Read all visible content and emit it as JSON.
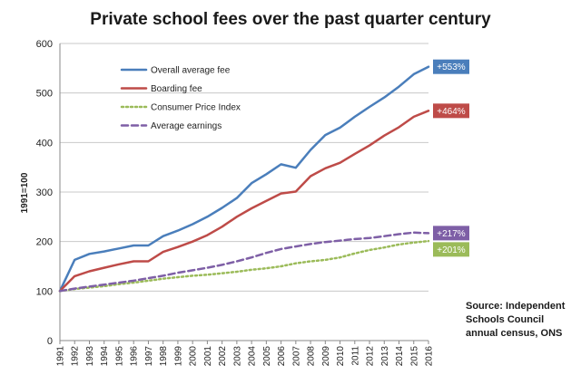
{
  "chart_data": {
    "type": "line",
    "title": "Private school fees over the past quarter century",
    "xlabel": "",
    "ylabel": "1991=100",
    "ylim": [
      0,
      600
    ],
    "yticks": [
      0,
      100,
      200,
      300,
      400,
      500,
      600
    ],
    "grid": true,
    "legend_position": "top-left",
    "categories": [
      "1991",
      "1992",
      "1993",
      "1994",
      "1995",
      "1996",
      "1997",
      "1998",
      "1999",
      "2000",
      "2001",
      "2002",
      "2003",
      "2004",
      "2005",
      "2006",
      "2007",
      "2008",
      "2009",
      "2010",
      "2011",
      "2012",
      "2013",
      "2014",
      "2015",
      "2016"
    ],
    "series": [
      {
        "name": "Overall average fee",
        "color": "#4a7ebb",
        "dash": "solid",
        "end_label": "+553%",
        "end_label_bg": "#4a7ebb",
        "values": [
          100,
          163,
          175,
          180,
          186,
          192,
          192,
          211,
          222,
          235,
          250,
          268,
          288,
          318,
          336,
          356,
          349,
          385,
          415,
          430,
          452,
          472,
          491,
          513,
          538,
          553
        ]
      },
      {
        "name": "Boarding fee",
        "color": "#be4b48",
        "dash": "solid",
        "end_label": "+464%",
        "end_label_bg": "#be4b48",
        "values": [
          100,
          130,
          140,
          147,
          154,
          160,
          160,
          179,
          189,
          200,
          213,
          230,
          250,
          267,
          282,
          297,
          301,
          332,
          348,
          359,
          377,
          394,
          414,
          431,
          452,
          464
        ]
      },
      {
        "name": "Consumer Price Index",
        "color": "#9bbb59",
        "dash": "dotted",
        "end_label": "+201%",
        "end_label_bg": "#9bbb59",
        "values": [
          100,
          104,
          107,
          110,
          114,
          117,
          121,
          125,
          128,
          131,
          133,
          136,
          139,
          143,
          146,
          150,
          156,
          160,
          163,
          168,
          176,
          183,
          188,
          194,
          198,
          201
        ]
      },
      {
        "name": "Average earnings",
        "color": "#7e5fa6",
        "dash": "dashed",
        "end_label": "+217%",
        "end_label_bg": "#7e5fa6",
        "values": [
          100,
          105,
          109,
          113,
          117,
          121,
          126,
          131,
          137,
          142,
          147,
          153,
          160,
          168,
          177,
          185,
          190,
          195,
          199,
          202,
          205,
          207,
          211,
          215,
          218,
          217
        ]
      }
    ],
    "source_note": [
      "Source: Independent",
      "Schools Council",
      "annual census, ONS"
    ]
  }
}
